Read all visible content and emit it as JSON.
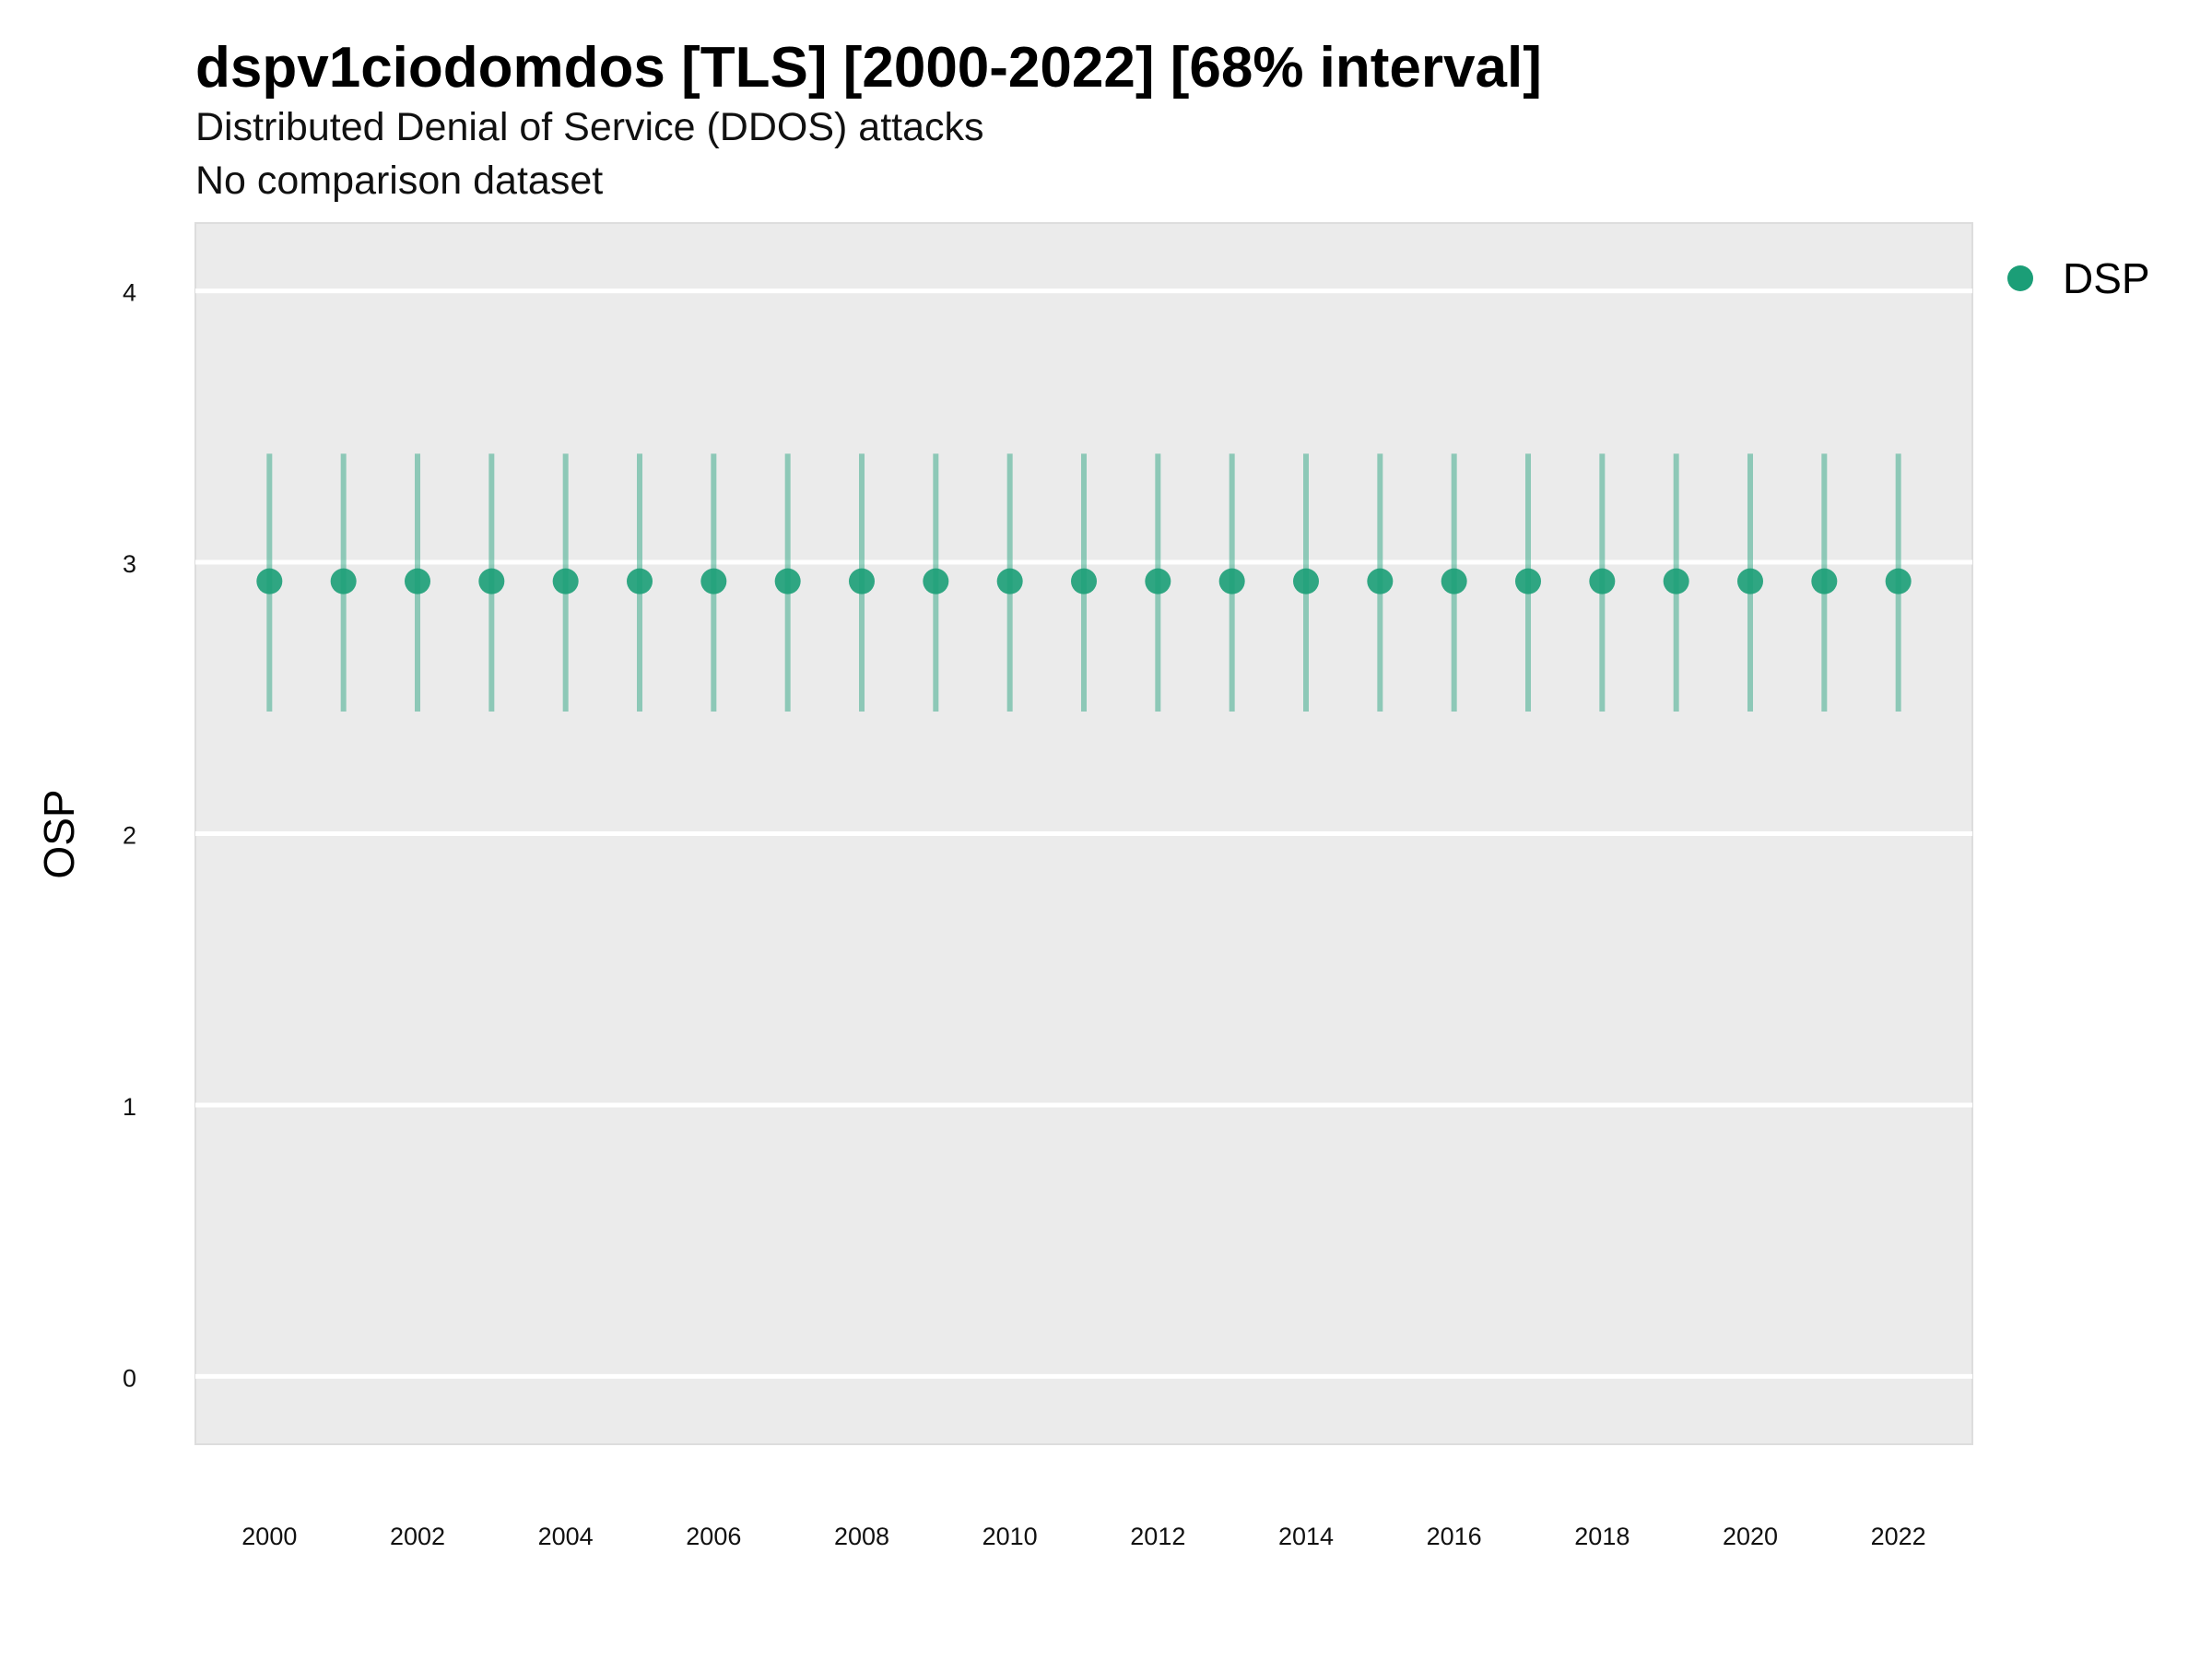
{
  "chart_data": {
    "type": "scatter",
    "title": "dspv1ciodomdos [TLS] [2000-2022] [68% interval]",
    "subtitle": "Distributed Denial of Service (DDOS) attacks",
    "caption": "No comparison dataset",
    "xlabel": "",
    "ylabel": "OSP",
    "xlim": [
      1999,
      2023
    ],
    "ylim": [
      -0.25,
      4.25
    ],
    "x_ticks": [
      2000,
      2002,
      2004,
      2006,
      2008,
      2010,
      2012,
      2014,
      2016,
      2018,
      2020,
      2022
    ],
    "y_ticks": [
      0,
      1,
      2,
      3,
      4
    ],
    "grid": "horizontal",
    "legend_position": "right",
    "series": [
      {
        "name": "DSP",
        "color": "#1b9e77",
        "x": [
          2000,
          2001,
          2002,
          2003,
          2004,
          2005,
          2006,
          2007,
          2008,
          2009,
          2010,
          2011,
          2012,
          2013,
          2014,
          2015,
          2016,
          2017,
          2018,
          2019,
          2020,
          2021,
          2022
        ],
        "y": [
          2.93,
          2.93,
          2.93,
          2.93,
          2.93,
          2.93,
          2.93,
          2.93,
          2.93,
          2.93,
          2.93,
          2.93,
          2.93,
          2.93,
          2.93,
          2.93,
          2.93,
          2.93,
          2.93,
          2.93,
          2.93,
          2.93,
          2.93
        ],
        "lower": [
          2.45,
          2.45,
          2.45,
          2.45,
          2.45,
          2.45,
          2.45,
          2.45,
          2.45,
          2.45,
          2.45,
          2.45,
          2.45,
          2.45,
          2.45,
          2.45,
          2.45,
          2.45,
          2.45,
          2.45,
          2.45,
          2.45,
          2.45
        ],
        "upper": [
          3.4,
          3.4,
          3.4,
          3.4,
          3.4,
          3.4,
          3.4,
          3.4,
          3.4,
          3.4,
          3.4,
          3.4,
          3.4,
          3.4,
          3.4,
          3.4,
          3.4,
          3.4,
          3.4,
          3.4,
          3.4,
          3.4,
          3.4
        ]
      }
    ]
  }
}
